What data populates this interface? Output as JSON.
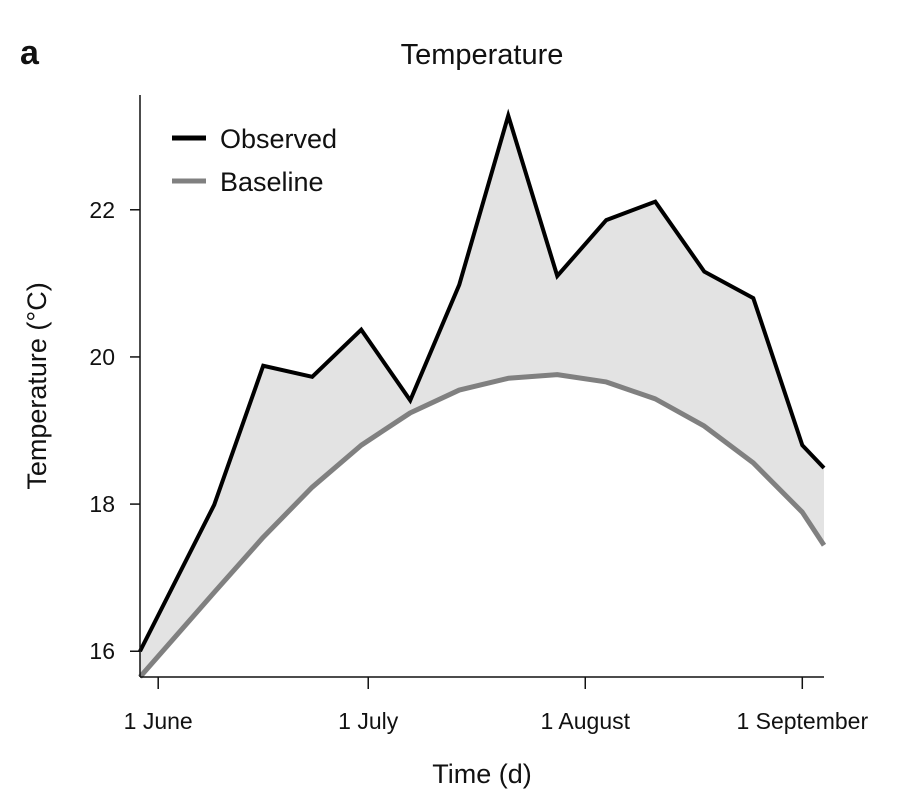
{
  "panel_label": "a",
  "chart_data": {
    "type": "line",
    "title": "Temperature",
    "xlabel": "Time (d)",
    "ylabel": "Temperature (°C)",
    "x_unit": "days since 1 June",
    "xlim": [
      -2.6,
      95.1
    ],
    "ylim": [
      15.65,
      23.56
    ],
    "x_ticks": [
      {
        "value": 0,
        "label": "1 June"
      },
      {
        "value": 30,
        "label": "1 July"
      },
      {
        "value": 61,
        "label": "1 August"
      },
      {
        "value": 92,
        "label": "1 September"
      }
    ],
    "y_ticks": [
      {
        "value": 16,
        "label": "16"
      },
      {
        "value": 18,
        "label": "18"
      },
      {
        "value": 20,
        "label": "20"
      },
      {
        "value": 22,
        "label": "22"
      }
    ],
    "grid": false,
    "legend_position": "top-left",
    "shaded_between_series": true,
    "colors": {
      "observed": "#000000",
      "baseline": "#808080",
      "fill": "#e3e3e3"
    },
    "x": [
      -2.6,
      8,
      15,
      22,
      29,
      36,
      43,
      50,
      57,
      64,
      71,
      78,
      85,
      92,
      95.1
    ],
    "series": [
      {
        "name": "Observed",
        "values": [
          16.0,
          17.99,
          19.88,
          19.73,
          20.37,
          19.41,
          20.98,
          23.28,
          21.1,
          21.86,
          22.11,
          21.16,
          20.8,
          18.8,
          18.49
        ]
      },
      {
        "name": "Baseline",
        "values": [
          15.65,
          16.8,
          17.55,
          18.23,
          18.8,
          19.24,
          19.55,
          19.71,
          19.76,
          19.66,
          19.43,
          19.06,
          18.56,
          17.89,
          17.44
        ]
      }
    ]
  }
}
